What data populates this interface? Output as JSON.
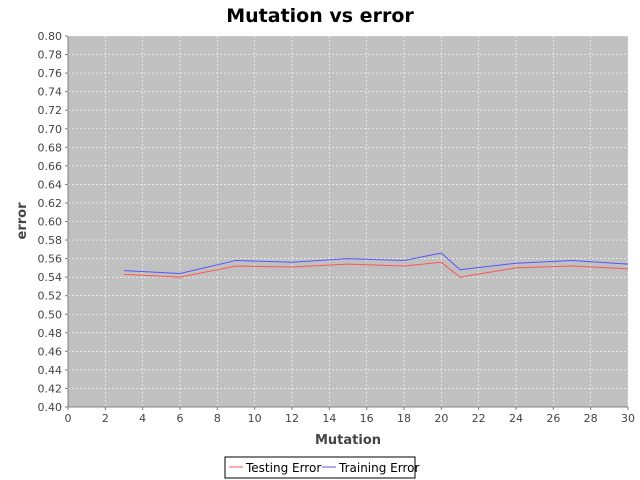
{
  "chart_data": {
    "type": "line",
    "title": "Mutation vs error",
    "xlabel": "Mutation",
    "ylabel": "error",
    "xlim": [
      0,
      30
    ],
    "ylim": [
      0.4,
      0.8
    ],
    "xticks": [
      0,
      2,
      4,
      6,
      8,
      10,
      12,
      14,
      16,
      18,
      20,
      22,
      24,
      26,
      28,
      30
    ],
    "yticks": [
      0.4,
      0.42,
      0.44,
      0.46,
      0.48,
      0.5,
      0.52,
      0.54,
      0.56,
      0.58,
      0.6,
      0.62,
      0.64,
      0.66,
      0.68,
      0.7,
      0.72,
      0.74,
      0.76,
      0.78,
      0.8
    ],
    "xtick_labels": [
      "0",
      "2",
      "4",
      "6",
      "8",
      "10",
      "12",
      "14",
      "16",
      "18",
      "20",
      "22",
      "24",
      "26",
      "28",
      "30"
    ],
    "ytick_labels": [
      "0.40",
      "0.42",
      "0.44",
      "0.46",
      "0.48",
      "0.50",
      "0.52",
      "0.54",
      "0.56",
      "0.58",
      "0.60",
      "0.62",
      "0.64",
      "0.66",
      "0.68",
      "0.70",
      "0.72",
      "0.74",
      "0.76",
      "0.78",
      "0.80"
    ],
    "grid": true,
    "legend_position": "bottom",
    "background_color": "#c0c0c0",
    "grid_color": "#ffffff",
    "series": [
      {
        "name": "Testing Error",
        "color": "#ff5555",
        "x": [
          3,
          6,
          9,
          12,
          15,
          18,
          20,
          21,
          24,
          27,
          30
        ],
        "y": [
          0.543,
          0.54,
          0.552,
          0.551,
          0.554,
          0.552,
          0.556,
          0.54,
          0.55,
          0.552,
          0.549
        ]
      },
      {
        "name": "Training Error",
        "color": "#5555ff",
        "x": [
          3,
          6,
          9,
          12,
          15,
          18,
          20,
          21,
          24,
          27,
          30
        ],
        "y": [
          0.547,
          0.544,
          0.558,
          0.556,
          0.56,
          0.558,
          0.566,
          0.548,
          0.555,
          0.558,
          0.554
        ]
      }
    ]
  }
}
